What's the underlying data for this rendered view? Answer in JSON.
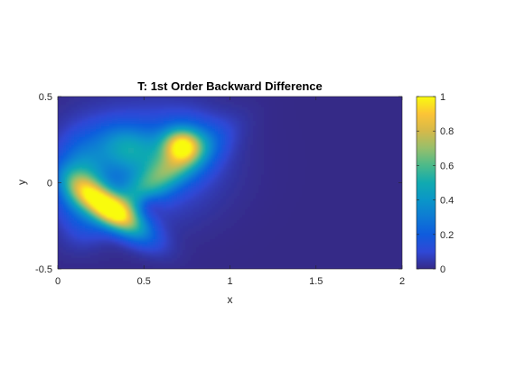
{
  "chart_data": {
    "type": "heatmap",
    "title": "T: 1st Order Backward Difference",
    "xlabel": "x",
    "ylabel": "y",
    "xlim": [
      0,
      2
    ],
    "ylim": [
      -0.5,
      0.5
    ],
    "x_ticks": [
      0,
      0.5,
      1,
      1.5,
      2
    ],
    "x_tick_labels": [
      "0",
      "0.5",
      "1",
      "1.5",
      "2"
    ],
    "y_ticks": [
      -0.5,
      0,
      0.5
    ],
    "y_tick_labels": [
      "-0.5",
      "0",
      "0.5"
    ],
    "colorbar": {
      "limits": [
        0,
        1
      ],
      "ticks": [
        0,
        0.2,
        0.4,
        0.6,
        0.8,
        1
      ],
      "tick_labels": [
        "0",
        "0.2",
        "0.4",
        "0.6",
        "0.8",
        "1"
      ],
      "colormap": "parula"
    },
    "field_peaks": [
      {
        "x": 0.3,
        "y": -0.15,
        "value": 0.95
      },
      {
        "x": 0.72,
        "y": 0.22,
        "value": 0.85
      },
      {
        "x": 0.55,
        "y": 0.03,
        "value": 0.6
      },
      {
        "x": 0.12,
        "y": 0.0,
        "value": 0.45
      },
      {
        "x": 0.38,
        "y": 0.2,
        "value": 0.4
      }
    ],
    "background_value": 0.0,
    "grid": false
  }
}
